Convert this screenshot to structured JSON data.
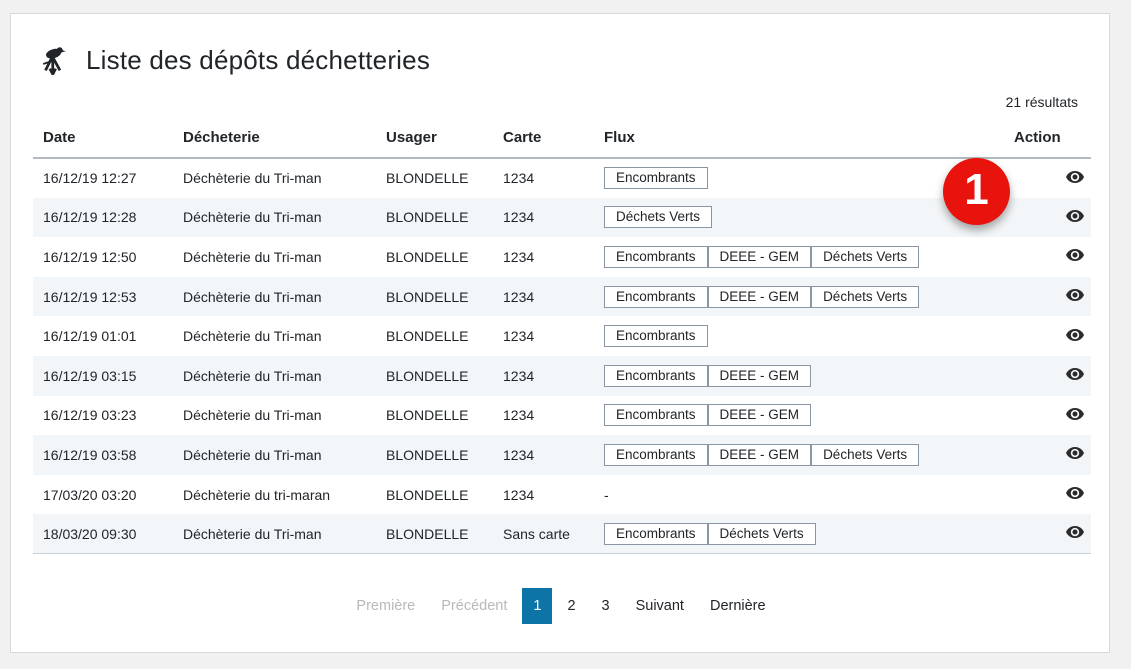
{
  "header": {
    "title": "Liste des dépôts déchetteries",
    "results_count": "21 résultats"
  },
  "table": {
    "columns": [
      "Date",
      "Décheterie",
      "Usager",
      "Carte",
      "Flux",
      "Action"
    ],
    "empty_flux_label": "-",
    "rows": [
      {
        "date": "16/12/19 12:27",
        "site": "Déchèterie du Tri-man",
        "user": "BLONDELLE",
        "card": "1234",
        "flux": [
          "Encombrants"
        ]
      },
      {
        "date": "16/12/19 12:28",
        "site": "Déchèterie du Tri-man",
        "user": "BLONDELLE",
        "card": "1234",
        "flux": [
          "Déchets Verts"
        ]
      },
      {
        "date": "16/12/19 12:50",
        "site": "Déchèterie du Tri-man",
        "user": "BLONDELLE",
        "card": "1234",
        "flux": [
          "Encombrants",
          "DEEE - GEM",
          "Déchets Verts"
        ]
      },
      {
        "date": "16/12/19 12:53",
        "site": "Déchèterie du Tri-man",
        "user": "BLONDELLE",
        "card": "1234",
        "flux": [
          "Encombrants",
          "DEEE - GEM",
          "Déchets Verts"
        ]
      },
      {
        "date": "16/12/19 01:01",
        "site": "Déchèterie du Tri-man",
        "user": "BLONDELLE",
        "card": "1234",
        "flux": [
          "Encombrants"
        ]
      },
      {
        "date": "16/12/19 03:15",
        "site": "Déchèterie du Tri-man",
        "user": "BLONDELLE",
        "card": "1234",
        "flux": [
          "Encombrants",
          "DEEE - GEM"
        ]
      },
      {
        "date": "16/12/19 03:23",
        "site": "Déchèterie du Tri-man",
        "user": "BLONDELLE",
        "card": "1234",
        "flux": [
          "Encombrants",
          "DEEE - GEM"
        ]
      },
      {
        "date": "16/12/19 03:58",
        "site": "Déchèterie du Tri-man",
        "user": "BLONDELLE",
        "card": "1234",
        "flux": [
          "Encombrants",
          "DEEE - GEM",
          "Déchets Verts"
        ]
      },
      {
        "date": "17/03/20 03:20",
        "site": "Déchèterie du tri-maran",
        "user": "BLONDELLE",
        "card": "1234",
        "flux": []
      },
      {
        "date": "18/03/20 09:30",
        "site": "Déchèterie du Tri-man",
        "user": "BLONDELLE",
        "card": "Sans carte",
        "flux": [
          "Encombrants",
          "Déchets Verts"
        ]
      }
    ]
  },
  "pagination": {
    "items": [
      {
        "label": "Première",
        "state": "disabled"
      },
      {
        "label": "Précédent",
        "state": "disabled"
      },
      {
        "label": "1",
        "state": "active"
      },
      {
        "label": "2",
        "state": "normal"
      },
      {
        "label": "3",
        "state": "normal"
      },
      {
        "label": "Suivant",
        "state": "normal"
      },
      {
        "label": "Dernière",
        "state": "normal"
      }
    ]
  },
  "annotation": {
    "label": "1"
  },
  "colors": {
    "accent_blue": "#0d74a8",
    "annotation_red": "#e8130c",
    "stripe": "#f3f6f8",
    "badge_border": "#8a96a3"
  }
}
